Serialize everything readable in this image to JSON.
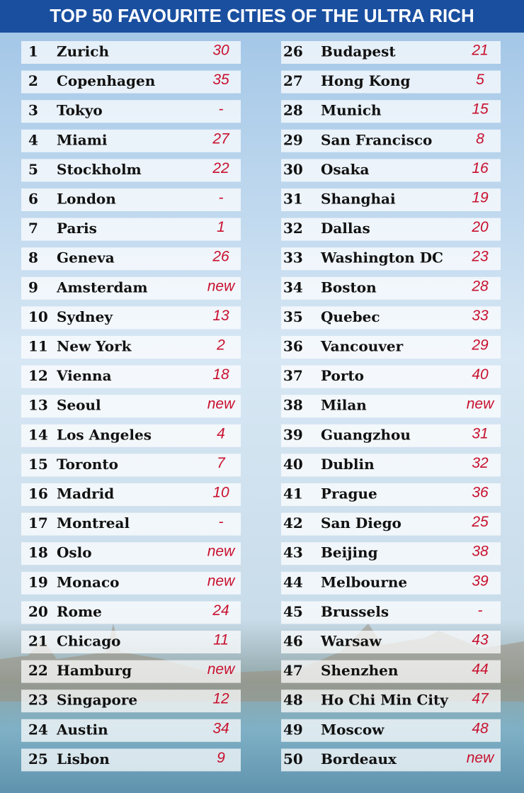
{
  "title": "TOP 50 FAVOURITE CITIES OF THE ULTRA RICH",
  "rows": [
    [
      1,
      "Zurich",
      30
    ],
    [
      2,
      "Copenhagen",
      35
    ],
    [
      3,
      "Tokyo",
      "-"
    ],
    [
      4,
      "Miami",
      27
    ],
    [
      5,
      "Stockholm",
      22
    ],
    [
      6,
      "London",
      "-"
    ],
    [
      7,
      "Paris",
      1
    ],
    [
      8,
      "Geneva",
      26
    ],
    [
      9,
      "Amsterdam",
      "new"
    ],
    [
      10,
      "Sydney",
      13
    ],
    [
      11,
      "New York",
      2
    ],
    [
      12,
      "Vienna",
      18
    ],
    [
      13,
      "Seoul",
      "new"
    ],
    [
      14,
      "Los Angeles",
      4
    ],
    [
      15,
      "Toronto",
      7
    ],
    [
      16,
      "Madrid",
      10
    ],
    [
      17,
      "Montreal",
      "-"
    ],
    [
      18,
      "Oslo",
      "new"
    ],
    [
      19,
      "Monaco",
      "new"
    ],
    [
      20,
      "Rome",
      24
    ],
    [
      21,
      "Chicago",
      11
    ],
    [
      22,
      "Hamburg",
      "new"
    ],
    [
      23,
      "Singapore",
      12
    ],
    [
      24,
      "Austin",
      34
    ],
    [
      25,
      "Lisbon",
      9
    ],
    [
      26,
      "Budapest",
      21
    ],
    [
      27,
      "Hong Kong",
      5
    ],
    [
      28,
      "Munich",
      15
    ],
    [
      29,
      "San Francisco",
      8
    ],
    [
      30,
      "Osaka",
      16
    ],
    [
      31,
      "Shanghai",
      19
    ],
    [
      32,
      "Dallas",
      20
    ],
    [
      33,
      "Washington DC",
      23
    ],
    [
      34,
      "Boston",
      28
    ],
    [
      35,
      "Quebec",
      33
    ],
    [
      36,
      "Vancouver",
      29
    ],
    [
      37,
      "Porto",
      40
    ],
    [
      38,
      "Milan",
      "new"
    ],
    [
      39,
      "Guangzhou",
      31
    ],
    [
      40,
      "Dublin",
      32
    ],
    [
      41,
      "Prague",
      36
    ],
    [
      42,
      "San Diego",
      25
    ],
    [
      43,
      "Beijing",
      38
    ],
    [
      44,
      "Melbourne",
      39
    ],
    [
      45,
      "Brussels",
      "-"
    ],
    [
      46,
      "Warsaw",
      43
    ],
    [
      47,
      "Shenzhen",
      44
    ],
    [
      48,
      "Ho Chi Min City",
      47
    ],
    [
      49,
      "Moscow",
      48
    ],
    [
      50,
      "Bordeaux",
      "new"
    ]
  ]
}
